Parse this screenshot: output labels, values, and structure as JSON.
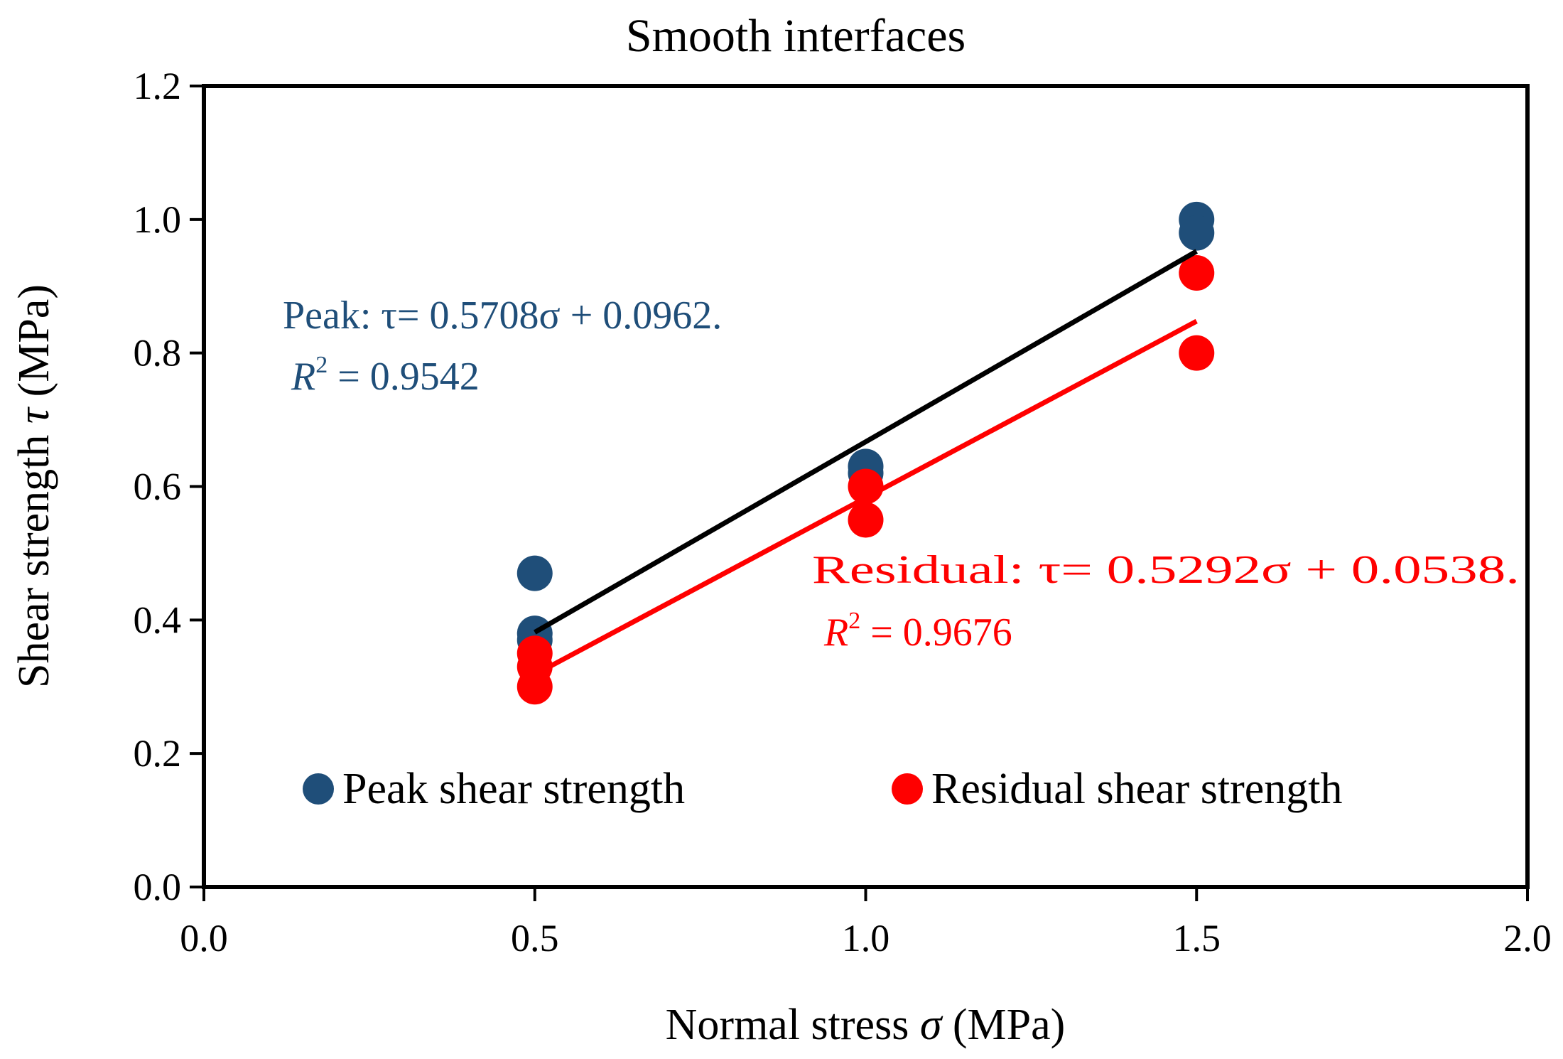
{
  "chart_data": {
    "type": "scatter",
    "title": "Smooth interfaces",
    "xlabel": {
      "main": "Normal stress ",
      "symbol": "σ",
      "unit": " (MPa)"
    },
    "ylabel": {
      "main": "Shear strength ",
      "symbol": "τ",
      "unit": " (MPa)"
    },
    "xlim": [
      0,
      2
    ],
    "ylim": [
      0,
      1.2
    ],
    "xticks": [
      0,
      0.5,
      1,
      1.5,
      2
    ],
    "xtick_labels": [
      "0.0",
      "0.5",
      "1.0",
      "1.5",
      "2.0"
    ],
    "yticks": [
      0,
      0.2,
      0.4,
      0.6,
      0.8,
      1.0,
      1.2
    ],
    "ytick_labels": [
      "0.0",
      "0.2",
      "0.4",
      "0.6",
      "0.8",
      "1.0",
      "1.2"
    ],
    "grid": false,
    "legend_position": "bottom",
    "series": [
      {
        "name": "Peak shear strength",
        "color": "#1f4e79",
        "points": [
          {
            "x": 0.5,
            "y": 0.47
          },
          {
            "x": 0.5,
            "y": 0.38
          },
          {
            "x": 0.5,
            "y": 0.37
          },
          {
            "x": 1.0,
            "y": 0.63
          },
          {
            "x": 1.0,
            "y": 0.62
          },
          {
            "x": 1.5,
            "y": 1.0
          },
          {
            "x": 1.5,
            "y": 0.98
          }
        ],
        "trendline": {
          "slope": 0.5708,
          "intercept": 0.0962,
          "x_range": [
            0.5,
            1.5
          ],
          "color": "#000000"
        },
        "equation": {
          "prefix": "Peak: τ= 0.5708σ + 0.0962.",
          "r2_label": "R",
          "r2_exp": "2",
          "r2_value": " = 0.9542"
        }
      },
      {
        "name": "Residual shear strength",
        "color": "#ff0000",
        "points": [
          {
            "x": 0.5,
            "y": 0.35
          },
          {
            "x": 0.5,
            "y": 0.33
          },
          {
            "x": 0.5,
            "y": 0.3
          },
          {
            "x": 1.0,
            "y": 0.6
          },
          {
            "x": 1.0,
            "y": 0.55
          },
          {
            "x": 1.5,
            "y": 0.92
          },
          {
            "x": 1.5,
            "y": 0.8
          }
        ],
        "trendline": {
          "slope": 0.5292,
          "intercept": 0.0538,
          "x_range": [
            0.5,
            1.5
          ],
          "color": "#ff0000"
        },
        "equation": {
          "prefix": "Residual: τ= 0.5292σ + 0.0538.",
          "r2_label": "R",
          "r2_exp": "2",
          "r2_value": " = 0.9676"
        }
      }
    ]
  }
}
